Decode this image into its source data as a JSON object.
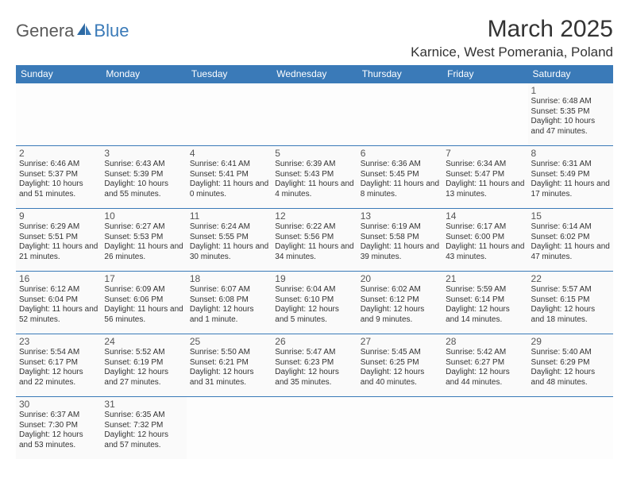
{
  "logo": {
    "text1": "Genera",
    "text2": "Blue",
    "color_gray": "#5a5a5a",
    "color_blue": "#3a7ab8"
  },
  "title": "March 2025",
  "location": "Karnice, West Pomerania, Poland",
  "header_bg": "#3a7ab8",
  "header_text_color": "#ffffff",
  "border_color": "#3a7ab8",
  "cell_bg": "#fafafa",
  "weekdays": [
    "Sunday",
    "Monday",
    "Tuesday",
    "Wednesday",
    "Thursday",
    "Friday",
    "Saturday"
  ],
  "days": {
    "1": {
      "sunrise": "6:48 AM",
      "sunset": "5:35 PM",
      "daylight": "10 hours and 47 minutes."
    },
    "2": {
      "sunrise": "6:46 AM",
      "sunset": "5:37 PM",
      "daylight": "10 hours and 51 minutes."
    },
    "3": {
      "sunrise": "6:43 AM",
      "sunset": "5:39 PM",
      "daylight": "10 hours and 55 minutes."
    },
    "4": {
      "sunrise": "6:41 AM",
      "sunset": "5:41 PM",
      "daylight": "11 hours and 0 minutes."
    },
    "5": {
      "sunrise": "6:39 AM",
      "sunset": "5:43 PM",
      "daylight": "11 hours and 4 minutes."
    },
    "6": {
      "sunrise": "6:36 AM",
      "sunset": "5:45 PM",
      "daylight": "11 hours and 8 minutes."
    },
    "7": {
      "sunrise": "6:34 AM",
      "sunset": "5:47 PM",
      "daylight": "11 hours and 13 minutes."
    },
    "8": {
      "sunrise": "6:31 AM",
      "sunset": "5:49 PM",
      "daylight": "11 hours and 17 minutes."
    },
    "9": {
      "sunrise": "6:29 AM",
      "sunset": "5:51 PM",
      "daylight": "11 hours and 21 minutes."
    },
    "10": {
      "sunrise": "6:27 AM",
      "sunset": "5:53 PM",
      "daylight": "11 hours and 26 minutes."
    },
    "11": {
      "sunrise": "6:24 AM",
      "sunset": "5:55 PM",
      "daylight": "11 hours and 30 minutes."
    },
    "12": {
      "sunrise": "6:22 AM",
      "sunset": "5:56 PM",
      "daylight": "11 hours and 34 minutes."
    },
    "13": {
      "sunrise": "6:19 AM",
      "sunset": "5:58 PM",
      "daylight": "11 hours and 39 minutes."
    },
    "14": {
      "sunrise": "6:17 AM",
      "sunset": "6:00 PM",
      "daylight": "11 hours and 43 minutes."
    },
    "15": {
      "sunrise": "6:14 AM",
      "sunset": "6:02 PM",
      "daylight": "11 hours and 47 minutes."
    },
    "16": {
      "sunrise": "6:12 AM",
      "sunset": "6:04 PM",
      "daylight": "11 hours and 52 minutes."
    },
    "17": {
      "sunrise": "6:09 AM",
      "sunset": "6:06 PM",
      "daylight": "11 hours and 56 minutes."
    },
    "18": {
      "sunrise": "6:07 AM",
      "sunset": "6:08 PM",
      "daylight": "12 hours and 1 minute."
    },
    "19": {
      "sunrise": "6:04 AM",
      "sunset": "6:10 PM",
      "daylight": "12 hours and 5 minutes."
    },
    "20": {
      "sunrise": "6:02 AM",
      "sunset": "6:12 PM",
      "daylight": "12 hours and 9 minutes."
    },
    "21": {
      "sunrise": "5:59 AM",
      "sunset": "6:14 PM",
      "daylight": "12 hours and 14 minutes."
    },
    "22": {
      "sunrise": "5:57 AM",
      "sunset": "6:15 PM",
      "daylight": "12 hours and 18 minutes."
    },
    "23": {
      "sunrise": "5:54 AM",
      "sunset": "6:17 PM",
      "daylight": "12 hours and 22 minutes."
    },
    "24": {
      "sunrise": "5:52 AM",
      "sunset": "6:19 PM",
      "daylight": "12 hours and 27 minutes."
    },
    "25": {
      "sunrise": "5:50 AM",
      "sunset": "6:21 PM",
      "daylight": "12 hours and 31 minutes."
    },
    "26": {
      "sunrise": "5:47 AM",
      "sunset": "6:23 PM",
      "daylight": "12 hours and 35 minutes."
    },
    "27": {
      "sunrise": "5:45 AM",
      "sunset": "6:25 PM",
      "daylight": "12 hours and 40 minutes."
    },
    "28": {
      "sunrise": "5:42 AM",
      "sunset": "6:27 PM",
      "daylight": "12 hours and 44 minutes."
    },
    "29": {
      "sunrise": "5:40 AM",
      "sunset": "6:29 PM",
      "daylight": "12 hours and 48 minutes."
    },
    "30": {
      "sunrise": "6:37 AM",
      "sunset": "7:30 PM",
      "daylight": "12 hours and 53 minutes."
    },
    "31": {
      "sunrise": "6:35 AM",
      "sunset": "7:32 PM",
      "daylight": "12 hours and 57 minutes."
    }
  },
  "grid": [
    [
      null,
      null,
      null,
      null,
      null,
      null,
      "1"
    ],
    [
      "2",
      "3",
      "4",
      "5",
      "6",
      "7",
      "8"
    ],
    [
      "9",
      "10",
      "11",
      "12",
      "13",
      "14",
      "15"
    ],
    [
      "16",
      "17",
      "18",
      "19",
      "20",
      "21",
      "22"
    ],
    [
      "23",
      "24",
      "25",
      "26",
      "27",
      "28",
      "29"
    ],
    [
      "30",
      "31",
      null,
      null,
      null,
      null,
      null
    ]
  ],
  "labels": {
    "sunrise": "Sunrise: ",
    "sunset": "Sunset: ",
    "daylight": "Daylight: "
  }
}
